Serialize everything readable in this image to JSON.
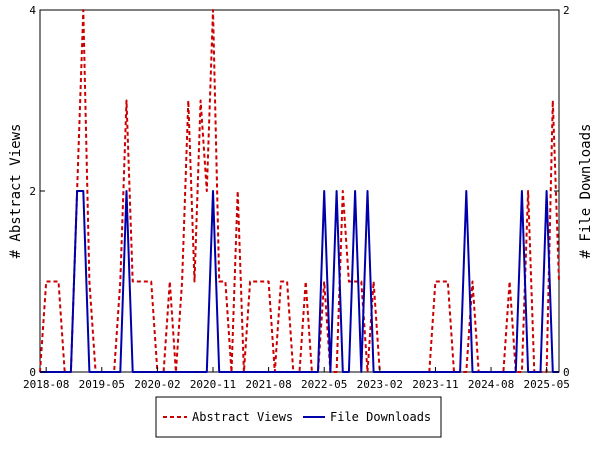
{
  "chart_data": {
    "type": "line",
    "x_tick_labels": [
      "2018-08",
      "2019-05",
      "2020-02",
      "2020-11",
      "2021-08",
      "2022-05",
      "2023-02",
      "2023-11",
      "2024-08",
      "2025-05"
    ],
    "ylabel_left": "# Abstract Views",
    "ylabel_right": "# File Downloads",
    "ylim_left": [
      0,
      4
    ],
    "ylim_right": [
      0,
      2
    ],
    "y_ticks_left": [
      0,
      2,
      4
    ],
    "y_ticks_right": [
      0,
      1,
      2
    ],
    "y_tick_labels_left": [
      "0",
      "2",
      "4"
    ],
    "y_tick_labels_right": [
      "0",
      "",
      "2"
    ],
    "grid": false,
    "legend_position": "bottom-center",
    "x_months": [
      "2018-07",
      "2018-08",
      "2018-09",
      "2018-10",
      "2018-11",
      "2018-12",
      "2019-01",
      "2019-02",
      "2019-03",
      "2019-04",
      "2019-05",
      "2019-06",
      "2019-07",
      "2019-08",
      "2019-09",
      "2019-10",
      "2019-11",
      "2019-12",
      "2020-01",
      "2020-02",
      "2020-03",
      "2020-04",
      "2020-05",
      "2020-06",
      "2020-07",
      "2020-08",
      "2020-09",
      "2020-10",
      "2020-11",
      "2020-12",
      "2021-01",
      "2021-02",
      "2021-03",
      "2021-04",
      "2021-05",
      "2021-06",
      "2021-07",
      "2021-08",
      "2021-09",
      "2021-10",
      "2021-11",
      "2021-12",
      "2022-01",
      "2022-02",
      "2022-03",
      "2022-04",
      "2022-05",
      "2022-06",
      "2022-07",
      "2022-08",
      "2022-09",
      "2022-10",
      "2022-11",
      "2022-12",
      "2023-01",
      "2023-02",
      "2023-03",
      "2023-04",
      "2023-05",
      "2023-06",
      "2023-07",
      "2023-08",
      "2023-09",
      "2023-10",
      "2023-11",
      "2023-12",
      "2024-01",
      "2024-02",
      "2024-03",
      "2024-04",
      "2024-05",
      "2024-06",
      "2024-07",
      "2024-08",
      "2024-09",
      "2024-10",
      "2024-11",
      "2024-12",
      "2025-01",
      "2025-02",
      "2025-03",
      "2025-04",
      "2025-05",
      "2025-06",
      "2025-07"
    ],
    "series": [
      {
        "name": "Abstract Views",
        "axis": "left",
        "color": "#cc0000",
        "dash": true,
        "values": [
          0,
          1,
          1,
          1,
          0,
          0,
          2,
          4,
          1,
          0,
          0,
          0,
          0,
          1,
          3,
          1,
          1,
          1,
          1,
          0,
          0,
          1,
          0,
          1,
          3,
          1,
          3,
          2,
          4,
          1,
          1,
          0,
          2,
          0,
          1,
          1,
          1,
          1,
          0,
          1,
          1,
          0,
          0,
          1,
          0,
          0,
          1,
          0,
          0,
          2,
          1,
          1,
          1,
          0,
          1,
          0,
          0,
          0,
          0,
          0,
          0,
          0,
          0,
          0,
          1,
          1,
          1,
          0,
          0,
          0,
          1,
          0,
          0,
          0,
          0,
          0,
          1,
          0,
          0,
          2,
          0,
          0,
          0,
          3,
          1
        ]
      },
      {
        "name": "File Downloads",
        "axis": "right",
        "color": "#0000aa",
        "dash": false,
        "values": [
          0,
          0,
          0,
          0,
          0,
          0,
          1,
          1,
          0,
          0,
          0,
          0,
          0,
          0,
          1,
          0,
          0,
          0,
          0,
          0,
          0,
          0,
          0,
          0,
          0,
          0,
          0,
          0,
          1,
          0,
          0,
          0,
          0,
          0,
          0,
          0,
          0,
          0,
          0,
          0,
          0,
          0,
          0,
          0,
          0,
          0,
          1,
          0,
          1,
          0,
          0,
          1,
          0,
          1,
          0,
          0,
          0,
          0,
          0,
          0,
          0,
          0,
          0,
          0,
          0,
          0,
          0,
          0,
          0,
          1,
          0,
          0,
          0,
          0,
          0,
          0,
          0,
          0,
          1,
          0,
          0,
          0,
          1,
          0,
          0
        ]
      }
    ]
  }
}
